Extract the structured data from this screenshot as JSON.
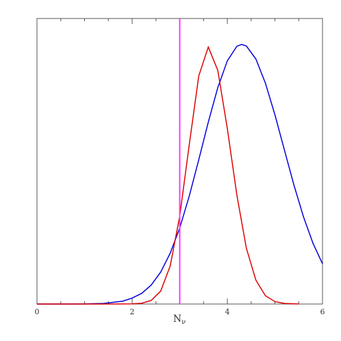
{
  "chart_data": {
    "type": "line",
    "xlabel": {
      "base": "N",
      "subscript": "ν"
    },
    "xlim": [
      0,
      6
    ],
    "ylim": [
      0,
      1.1
    ],
    "xticks": [
      0,
      2,
      4,
      6
    ],
    "xminorticks": [
      0.5,
      1,
      1.5,
      2.5,
      3,
      3.5,
      4.5,
      5,
      5.5
    ],
    "vline": {
      "x": 3,
      "color": "#ff33ff"
    },
    "series": [
      {
        "color": "#0000dd",
        "x": [
          0,
          0.5,
          1.0,
          1.4,
          1.8,
          2.0,
          2.2,
          2.4,
          2.6,
          2.8,
          3.0,
          3.2,
          3.4,
          3.6,
          3.8,
          4.0,
          4.2,
          4.3,
          4.4,
          4.6,
          4.8,
          5.0,
          5.2,
          5.4,
          5.6,
          5.8,
          6.0
        ],
        "values": [
          0,
          3e-05,
          0.0004,
          0.0022,
          0.011,
          0.023,
          0.041,
          0.073,
          0.123,
          0.196,
          0.293,
          0.416,
          0.556,
          0.701,
          0.834,
          0.937,
          0.993,
          1.0,
          0.994,
          0.944,
          0.851,
          0.729,
          0.593,
          0.458,
          0.336,
          0.234,
          0.155
        ]
      },
      {
        "color": "#dd0000",
        "x": [
          0,
          1.5,
          2.0,
          2.2,
          2.4,
          2.6,
          2.8,
          3.0,
          3.2,
          3.4,
          3.6,
          3.8,
          4.0,
          4.2,
          4.4,
          4.6,
          4.8,
          5.0,
          5.2,
          5.5
        ],
        "values": [
          0,
          0,
          0.0005,
          0.003,
          0.0136,
          0.05,
          0.147,
          0.339,
          0.614,
          0.879,
          0.99,
          0.9,
          0.676,
          0.42,
          0.215,
          0.092,
          0.032,
          0.0093,
          0.0022,
          0.0002
        ]
      }
    ]
  }
}
